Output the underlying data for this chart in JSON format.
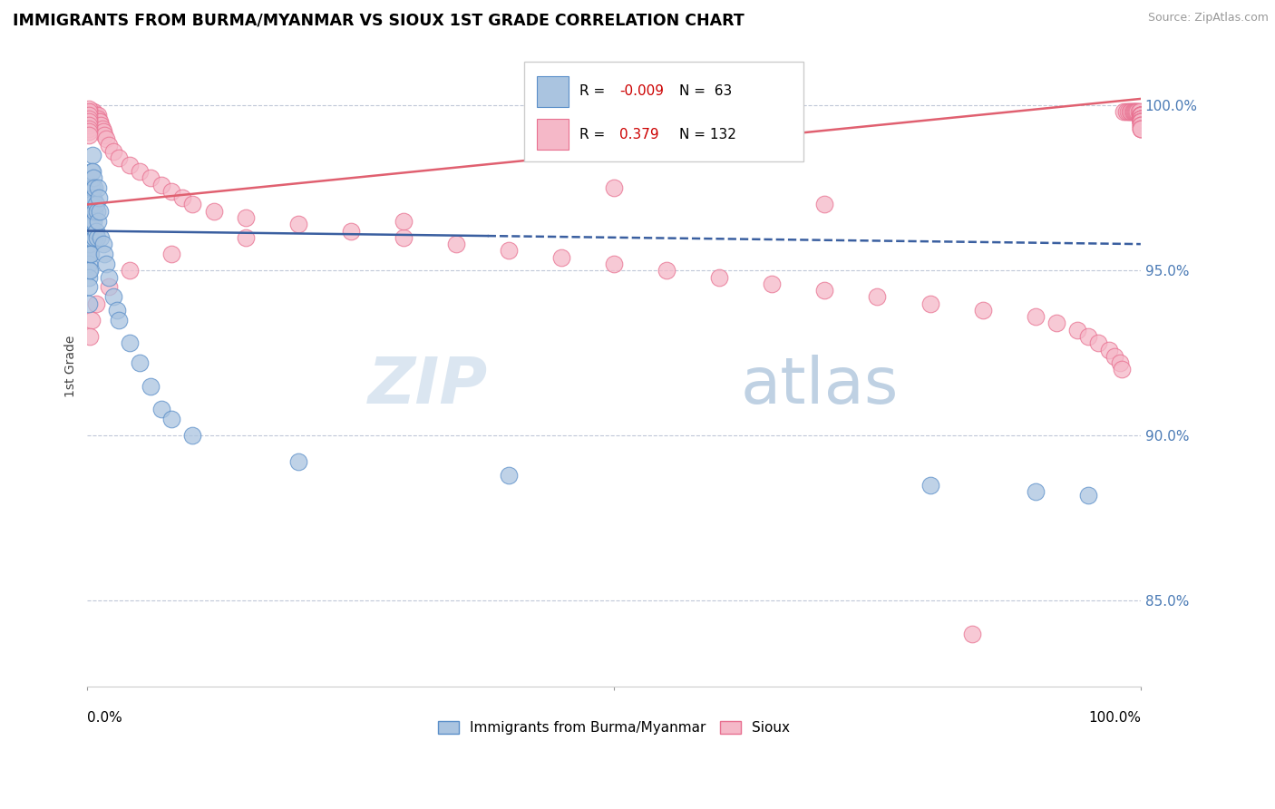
{
  "title": "IMMIGRANTS FROM BURMA/MYANMAR VS SIOUX 1ST GRADE CORRELATION CHART",
  "source": "Source: ZipAtlas.com",
  "ylabel": "1st Grade",
  "legend_blue_label": "Immigrants from Burma/Myanmar",
  "legend_pink_label": "Sioux",
  "blue_R": -0.009,
  "blue_N": 63,
  "pink_R": 0.379,
  "pink_N": 132,
  "blue_color": "#aac4e0",
  "pink_color": "#f5b8c8",
  "blue_edge_color": "#5b8fc9",
  "pink_edge_color": "#e87090",
  "blue_line_color": "#3a5fa0",
  "pink_line_color": "#e06070",
  "watermark_zip": "ZIP",
  "watermark_atlas": "atlas",
  "xlim": [
    0.0,
    1.0
  ],
  "ylim": [
    0.824,
    1.018
  ],
  "yticks": [
    0.85,
    0.9,
    0.95,
    1.0
  ],
  "ytick_labels": [
    "85.0%",
    "90.0%",
    "95.0%",
    "100.0%"
  ],
  "blue_trend_y0": 0.962,
  "blue_trend_y1": 0.958,
  "pink_trend_y0": 0.97,
  "pink_trend_y1": 1.002,
  "blue_scatter_x": [
    0.001,
    0.001,
    0.001,
    0.001,
    0.001,
    0.001,
    0.001,
    0.001,
    0.001,
    0.002,
    0.002,
    0.002,
    0.002,
    0.002,
    0.002,
    0.002,
    0.003,
    0.003,
    0.003,
    0.003,
    0.003,
    0.003,
    0.004,
    0.004,
    0.004,
    0.004,
    0.005,
    0.005,
    0.005,
    0.005,
    0.006,
    0.006,
    0.006,
    0.007,
    0.007,
    0.007,
    0.008,
    0.008,
    0.009,
    0.009,
    0.01,
    0.01,
    0.011,
    0.012,
    0.013,
    0.015,
    0.016,
    0.018,
    0.02,
    0.025,
    0.028,
    0.03,
    0.04,
    0.05,
    0.06,
    0.07,
    0.08,
    0.1,
    0.2,
    0.4,
    0.8,
    0.9,
    0.95
  ],
  "blue_scatter_y": [
    0.965,
    0.96,
    0.958,
    0.955,
    0.952,
    0.95,
    0.948,
    0.945,
    0.94,
    0.97,
    0.965,
    0.963,
    0.96,
    0.958,
    0.955,
    0.95,
    0.975,
    0.972,
    0.968,
    0.965,
    0.96,
    0.955,
    0.98,
    0.975,
    0.97,
    0.965,
    0.985,
    0.98,
    0.975,
    0.968,
    0.978,
    0.972,
    0.965,
    0.975,
    0.968,
    0.96,
    0.97,
    0.962,
    0.968,
    0.96,
    0.975,
    0.965,
    0.972,
    0.968,
    0.96,
    0.958,
    0.955,
    0.952,
    0.948,
    0.942,
    0.938,
    0.935,
    0.928,
    0.922,
    0.915,
    0.908,
    0.905,
    0.9,
    0.892,
    0.888,
    0.885,
    0.883,
    0.882
  ],
  "pink_scatter_x": [
    0.001,
    0.001,
    0.001,
    0.001,
    0.001,
    0.002,
    0.002,
    0.002,
    0.002,
    0.003,
    0.003,
    0.003,
    0.003,
    0.004,
    0.004,
    0.004,
    0.005,
    0.005,
    0.005,
    0.006,
    0.006,
    0.006,
    0.007,
    0.007,
    0.007,
    0.008,
    0.008,
    0.009,
    0.009,
    0.01,
    0.01,
    0.011,
    0.012,
    0.013,
    0.014,
    0.015,
    0.016,
    0.018,
    0.02,
    0.025,
    0.03,
    0.04,
    0.05,
    0.06,
    0.07,
    0.08,
    0.09,
    0.1,
    0.12,
    0.15,
    0.2,
    0.25,
    0.3,
    0.35,
    0.4,
    0.45,
    0.5,
    0.55,
    0.6,
    0.65,
    0.7,
    0.75,
    0.8,
    0.85,
    0.9,
    0.92,
    0.94,
    0.95,
    0.96,
    0.97,
    0.975,
    0.98,
    0.982,
    0.984,
    0.986,
    0.988,
    0.99,
    0.991,
    0.992,
    0.993,
    0.994,
    0.995,
    0.996,
    0.997,
    0.998,
    0.999,
    0.999,
    1.0,
    1.0,
    1.0,
    1.0,
    1.0,
    1.0,
    1.0,
    1.0,
    1.0,
    1.0,
    1.0,
    1.0,
    1.0,
    1.0,
    1.0,
    1.0,
    1.0,
    1.0,
    1.0,
    1.0,
    1.0,
    1.0,
    1.0,
    1.0,
    1.0,
    1.0,
    0.5,
    0.7,
    0.3,
    0.15,
    0.08,
    0.04,
    0.02,
    0.008,
    0.004,
    0.002,
    0.001,
    0.001,
    0.001,
    0.001,
    0.001,
    0.001,
    0.001,
    0.001,
    0.001,
    0.84
  ],
  "pink_scatter_y": [
    0.998,
    0.997,
    0.996,
    0.995,
    0.994,
    0.998,
    0.997,
    0.996,
    0.995,
    0.998,
    0.997,
    0.996,
    0.995,
    0.998,
    0.997,
    0.996,
    0.998,
    0.997,
    0.996,
    0.998,
    0.997,
    0.996,
    0.997,
    0.996,
    0.995,
    0.997,
    0.996,
    0.996,
    0.995,
    0.997,
    0.996,
    0.995,
    0.995,
    0.994,
    0.993,
    0.992,
    0.991,
    0.99,
    0.988,
    0.986,
    0.984,
    0.982,
    0.98,
    0.978,
    0.976,
    0.974,
    0.972,
    0.97,
    0.968,
    0.966,
    0.964,
    0.962,
    0.96,
    0.958,
    0.956,
    0.954,
    0.952,
    0.95,
    0.948,
    0.946,
    0.944,
    0.942,
    0.94,
    0.938,
    0.936,
    0.934,
    0.932,
    0.93,
    0.928,
    0.926,
    0.924,
    0.922,
    0.92,
    0.998,
    0.998,
    0.998,
    0.998,
    0.998,
    0.998,
    0.998,
    0.998,
    0.998,
    0.998,
    0.998,
    0.998,
    0.998,
    0.997,
    0.997,
    0.997,
    0.997,
    0.997,
    0.997,
    0.997,
    0.997,
    0.997,
    0.996,
    0.996,
    0.996,
    0.996,
    0.996,
    0.996,
    0.995,
    0.995,
    0.995,
    0.995,
    0.995,
    0.995,
    0.994,
    0.994,
    0.994,
    0.993,
    0.993,
    0.993,
    0.975,
    0.97,
    0.965,
    0.96,
    0.955,
    0.95,
    0.945,
    0.94,
    0.935,
    0.93,
    0.999,
    0.998,
    0.997,
    0.996,
    0.995,
    0.994,
    0.993,
    0.992,
    0.991,
    0.84
  ]
}
